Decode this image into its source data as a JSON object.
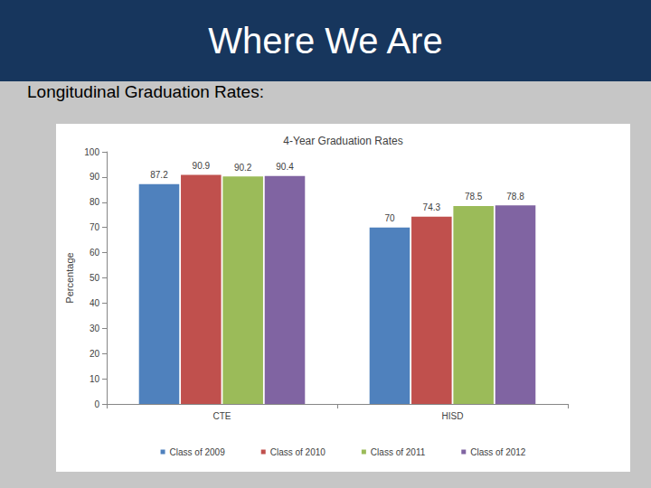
{
  "header": {
    "title": "Where We Are",
    "subtitle": "Longitudinal Graduation Rates:"
  },
  "chart_data": {
    "type": "bar",
    "title": "4-Year Graduation Rates",
    "ylabel": "Percentage",
    "categories": [
      "CTE",
      "HISD"
    ],
    "series": [
      {
        "name": "Class of 2009",
        "color": "#4f81bd",
        "values": [
          87.2,
          70
        ]
      },
      {
        "name": "Class of 2010",
        "color": "#c0504d",
        "values": [
          90.9,
          74.3
        ]
      },
      {
        "name": "Class of 2011",
        "color": "#9bbb59",
        "values": [
          90.2,
          78.5
        ]
      },
      {
        "name": "Class of 2012",
        "color": "#8064a2",
        "values": [
          90.4,
          78.8
        ]
      }
    ],
    "ylim": [
      0,
      100
    ],
    "yticks": [
      0,
      10,
      20,
      30,
      40,
      50,
      60,
      70,
      80,
      90,
      100
    ],
    "grid": false,
    "legend": "bottom",
    "data_labels": true
  }
}
